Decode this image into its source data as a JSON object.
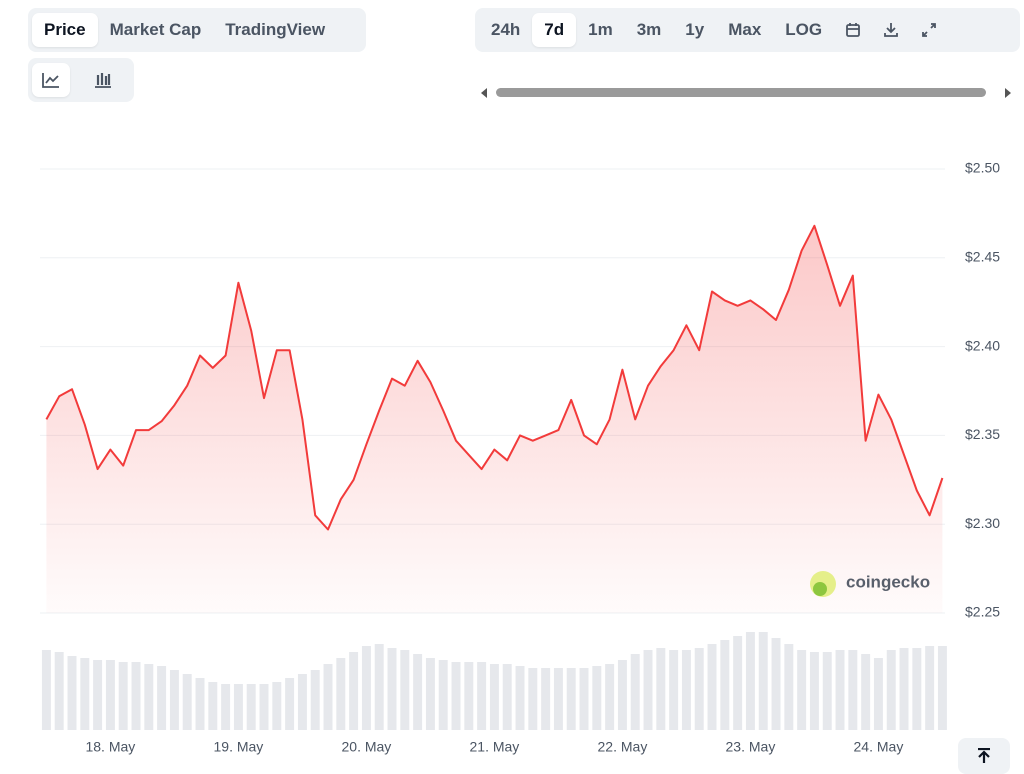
{
  "tabs": [
    "Price",
    "Market Cap",
    "TradingView"
  ],
  "active_tab": 0,
  "ranges": [
    "24h",
    "7d",
    "1m",
    "3m",
    "1y",
    "Max",
    "LOG"
  ],
  "active_range": 1,
  "watermark": "coingecko",
  "chart_data": {
    "type": "line",
    "color": "#f23b3b",
    "grid": true,
    "x": [
      17.5,
      17.6,
      17.7,
      17.8,
      17.9,
      18.0,
      18.1,
      18.2,
      18.3,
      18.4,
      18.5,
      18.6,
      18.7,
      18.8,
      18.9,
      19.0,
      19.1,
      19.2,
      19.3,
      19.4,
      19.5,
      19.6,
      19.7,
      19.8,
      19.9,
      20.0,
      20.1,
      20.2,
      20.3,
      20.4,
      20.5,
      20.6,
      20.7,
      20.8,
      20.9,
      21.0,
      21.1,
      21.2,
      21.3,
      21.4,
      21.5,
      21.6,
      21.7,
      21.8,
      21.9,
      22.0,
      22.1,
      22.2,
      22.3,
      22.4,
      22.5,
      22.6,
      22.7,
      22.8,
      22.9,
      23.0,
      23.1,
      23.2,
      23.3,
      23.4,
      23.5,
      23.6,
      23.7,
      23.8,
      23.9,
      24.0,
      24.1,
      24.2,
      24.3,
      24.4,
      24.5
    ],
    "values": [
      2.359,
      2.372,
      2.376,
      2.356,
      2.331,
      2.342,
      2.333,
      2.353,
      2.353,
      2.358,
      2.367,
      2.378,
      2.395,
      2.388,
      2.395,
      2.436,
      2.409,
      2.371,
      2.398,
      2.398,
      2.359,
      2.305,
      2.297,
      2.314,
      2.325,
      2.345,
      2.364,
      2.382,
      2.378,
      2.392,
      2.38,
      2.364,
      2.347,
      2.339,
      2.331,
      2.342,
      2.336,
      2.35,
      2.347,
      2.35,
      2.353,
      2.37,
      2.35,
      2.345,
      2.359,
      2.387,
      2.359,
      2.378,
      2.389,
      2.398,
      2.412,
      2.398,
      2.431,
      2.426,
      2.423,
      2.426,
      2.421,
      2.415,
      2.432,
      2.454,
      2.468,
      2.446,
      2.423,
      2.44,
      2.347,
      2.373,
      2.359,
      2.339,
      2.319,
      2.305,
      2.326
    ],
    "volume": [
      80,
      78,
      74,
      72,
      70,
      70,
      68,
      68,
      66,
      64,
      60,
      56,
      52,
      48,
      46,
      46,
      46,
      46,
      48,
      52,
      56,
      60,
      66,
      72,
      78,
      84,
      86,
      82,
      80,
      76,
      72,
      70,
      68,
      68,
      68,
      66,
      66,
      64,
      62,
      62,
      62,
      62,
      62,
      64,
      66,
      70,
      76,
      80,
      82,
      80,
      80,
      82,
      86,
      90,
      94,
      98,
      98,
      92,
      86,
      80,
      78,
      78,
      80,
      80,
      76,
      72,
      80,
      82,
      82,
      84,
      84
    ],
    "volume_lim": [
      0,
      100
    ],
    "xlim": [
      17.45,
      24.52
    ],
    "xticks": [
      {
        "value": 18,
        "label": "18. May"
      },
      {
        "value": 19,
        "label": "19. May"
      },
      {
        "value": 20,
        "label": "20. May"
      },
      {
        "value": 21,
        "label": "21. May"
      },
      {
        "value": 22,
        "label": "22. May"
      },
      {
        "value": 23,
        "label": "23. May"
      },
      {
        "value": 24,
        "label": "24. May"
      }
    ],
    "ylim": [
      2.25,
      2.5
    ],
    "yticks": [
      {
        "value": 2.25,
        "label": "$2.25"
      },
      {
        "value": 2.3,
        "label": "$2.30"
      },
      {
        "value": 2.35,
        "label": "$2.35"
      },
      {
        "value": 2.4,
        "label": "$2.40"
      },
      {
        "value": 2.45,
        "label": "$2.45"
      },
      {
        "value": 2.5,
        "label": "$2.50"
      }
    ]
  }
}
